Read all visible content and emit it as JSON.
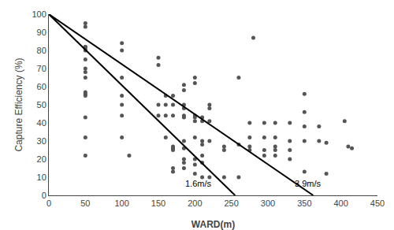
{
  "chart_data": {
    "type": "scatter",
    "xlabel": "WARD(m)",
    "ylabel": "Capture Efficiency (%)",
    "xlim": [
      0,
      450
    ],
    "ylim": [
      0,
      100
    ],
    "xticks": [
      0,
      50,
      100,
      150,
      200,
      250,
      300,
      350,
      400,
      450
    ],
    "yticks": [
      0,
      10,
      20,
      30,
      40,
      50,
      60,
      70,
      80,
      90,
      100
    ],
    "grid": false,
    "series": [
      {
        "type": "scatter",
        "color": "#555555",
        "x": [
          50,
          50,
          50,
          50,
          50,
          50,
          50,
          50,
          50,
          50,
          50,
          50,
          50,
          50,
          50,
          50,
          100,
          100,
          100,
          100,
          100,
          100,
          100,
          110,
          150,
          150,
          150,
          150,
          160,
          160,
          160,
          160,
          170,
          170,
          170,
          170,
          170,
          170,
          170,
          170,
          185,
          185,
          185,
          185,
          185,
          185,
          185,
          185,
          185,
          185,
          185,
          200,
          200,
          200,
          200,
          200,
          200,
          200,
          200,
          200,
          210,
          210,
          210,
          210,
          210,
          210,
          210,
          220,
          220,
          220,
          220,
          220,
          240,
          240,
          240,
          260,
          260,
          260,
          275,
          275,
          275,
          275,
          280,
          295,
          295,
          295,
          295,
          310,
          310,
          310,
          310,
          310,
          330,
          330,
          330,
          330,
          350,
          350,
          350,
          350,
          350,
          370,
          370,
          380,
          380,
          405,
          410,
          415
        ],
        "values": [
          95,
          93,
          82,
          82,
          81,
          80,
          75,
          70,
          68,
          65,
          57,
          56,
          55,
          43,
          32,
          22,
          84,
          80,
          65,
          55,
          50,
          44,
          32,
          22,
          76,
          72,
          50,
          44,
          55,
          50,
          44,
          32,
          55,
          50,
          44,
          27,
          26,
          25,
          15,
          13,
          61,
          58,
          50,
          48,
          44,
          43,
          30,
          26,
          20,
          18,
          15,
          65,
          62,
          44,
          43,
          41,
          32,
          20,
          17,
          12,
          43,
          41,
          30,
          28,
          22,
          18,
          10,
          50,
          48,
          41,
          30,
          10,
          27,
          25,
          10,
          65,
          28,
          10,
          40,
          32,
          27,
          25,
          87,
          40,
          32,
          25,
          22,
          40,
          32,
          27,
          25,
          22,
          40,
          30,
          25,
          20,
          56,
          46,
          38,
          30,
          13,
          38,
          30,
          29,
          12,
          41,
          27,
          26
        ]
      },
      {
        "type": "line",
        "color": "#000000",
        "x": [
          0,
          255
        ],
        "values": [
          100,
          0
        ]
      },
      {
        "type": "line",
        "color": "#000000",
        "x": [
          0,
          362
        ],
        "values": [
          100,
          0
        ]
      }
    ],
    "annotations": [
      {
        "text": "1.6m/s",
        "x": 185,
        "y": 3,
        "color": "#000000"
      },
      {
        "text": "3.9m/s",
        "x": 335,
        "y": 3,
        "color": "#000000"
      }
    ]
  }
}
